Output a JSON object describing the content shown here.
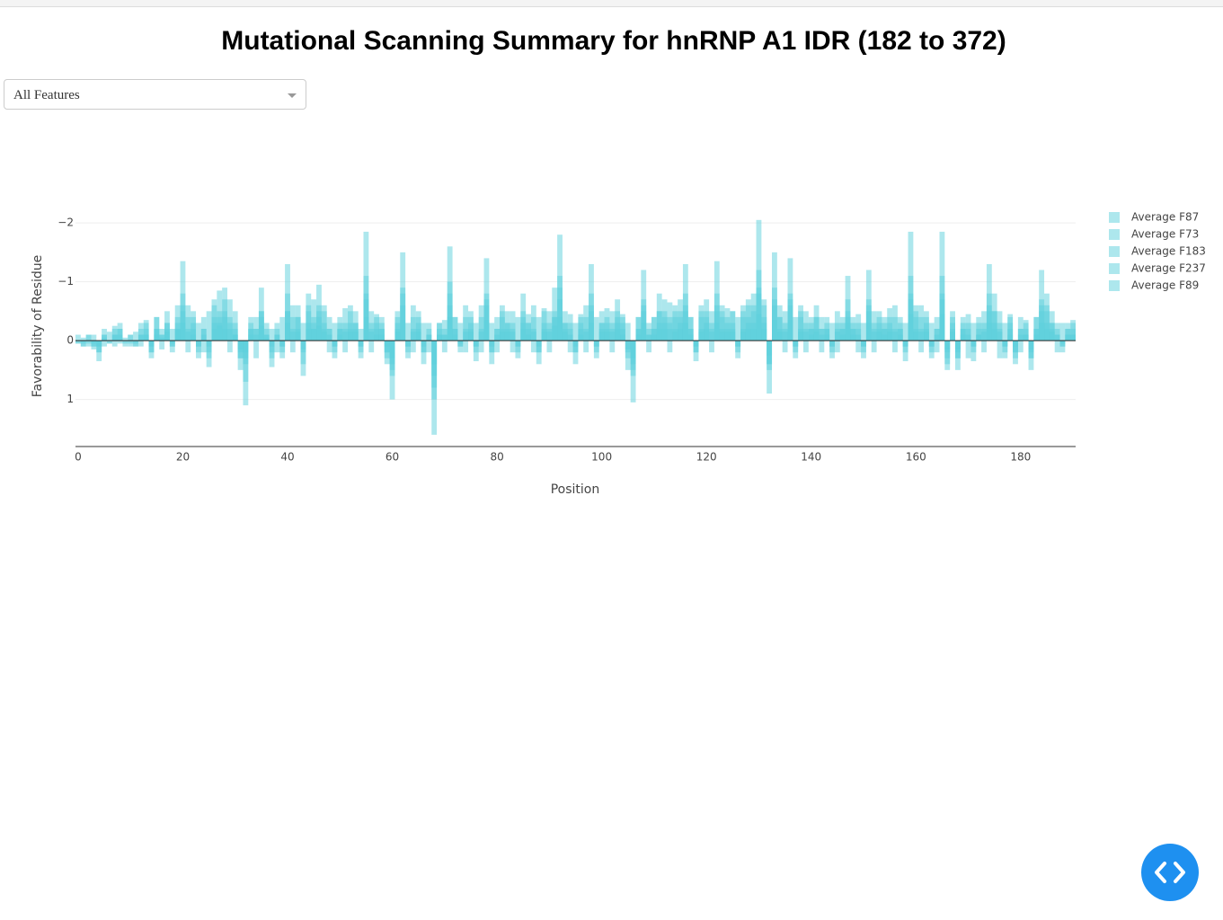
{
  "dropdown": {
    "label": "All Features"
  },
  "chart_data": {
    "type": "bar",
    "barmode": "overlay",
    "opacity": 0.5,
    "title": "Mutational Scanning Summary for hnRNP A1 IDR (182 to 372)",
    "x_label": "Position",
    "y_label": "Favorability of Residue",
    "x": [
      0,
      1,
      2,
      3,
      4,
      5,
      6,
      7,
      8,
      9,
      10,
      11,
      12,
      13,
      14,
      15,
      16,
      17,
      18,
      19,
      20,
      21,
      22,
      23,
      24,
      25,
      26,
      27,
      28,
      29,
      30,
      31,
      32,
      33,
      34,
      35,
      36,
      37,
      38,
      39,
      40,
      41,
      42,
      43,
      44,
      45,
      46,
      47,
      48,
      49,
      50,
      51,
      52,
      53,
      54,
      55,
      56,
      57,
      58,
      59,
      60,
      61,
      62,
      63,
      64,
      65,
      66,
      67,
      68,
      69,
      70,
      71,
      72,
      73,
      74,
      75,
      76,
      77,
      78,
      79,
      80,
      81,
      82,
      83,
      84,
      85,
      86,
      87,
      88,
      89,
      90,
      91,
      92,
      93,
      94,
      95,
      96,
      97,
      98,
      99,
      100,
      101,
      102,
      103,
      104,
      105,
      106,
      107,
      108,
      109,
      110,
      111,
      112,
      113,
      114,
      115,
      116,
      117,
      118,
      119,
      120,
      121,
      122,
      123,
      124,
      125,
      126,
      127,
      128,
      129,
      130,
      131,
      132,
      133,
      134,
      135,
      136,
      137,
      138,
      139,
      140,
      141,
      142,
      143,
      144,
      145,
      146,
      147,
      148,
      149,
      150,
      151,
      152,
      153,
      154,
      155,
      156,
      157,
      158,
      159,
      160,
      161,
      162,
      163,
      164,
      165,
      166,
      167,
      168,
      169,
      170,
      171,
      172,
      173,
      174,
      175,
      176,
      177,
      178,
      179,
      180,
      181,
      182,
      183,
      184,
      185,
      186,
      187,
      188,
      189,
      190
    ],
    "xlim": [
      -0.5,
      190.5
    ],
    "xticks": [
      0,
      20,
      40,
      60,
      80,
      100,
      120,
      140,
      160,
      180
    ],
    "ylim": [
      1.8,
      -2.2
    ],
    "yticks": [
      {
        "value": -2,
        "label": "−2"
      },
      {
        "value": -1,
        "label": "−1"
      },
      0,
      1
    ],
    "grid": true,
    "zeroline": true,
    "legend": "right",
    "series": [
      {
        "name": "Average F87",
        "color": "#5ccfdc",
        "values": [
          0.05,
          0.1,
          -0.1,
          0.15,
          0.35,
          -0.2,
          0.05,
          -0.25,
          -0.3,
          0.05,
          -0.1,
          0.1,
          -0.3,
          -0.35,
          0.3,
          -0.4,
          -0.2,
          -0.5,
          0.2,
          -0.6,
          -1.35,
          -0.6,
          -0.5,
          0.3,
          -0.4,
          0.45,
          -0.7,
          -0.85,
          -0.9,
          -0.7,
          -0.3,
          0.5,
          1.1,
          -0.4,
          -0.4,
          -0.9,
          -0.2,
          0.45,
          -0.3,
          0.3,
          -1.3,
          -0.6,
          -0.6,
          0.6,
          -0.8,
          -0.7,
          -0.95,
          -0.5,
          -0.4,
          0.3,
          -0.4,
          -0.55,
          -0.5,
          -0.5,
          0.3,
          -1.85,
          -0.5,
          -0.45,
          -0.4,
          0.4,
          1.0,
          -0.5,
          -1.5,
          0.3,
          -0.6,
          -0.5,
          0.4,
          -0.3,
          1.6,
          -0.3,
          -0.35,
          -1.6,
          -0.4,
          0.2,
          -0.6,
          -0.5,
          0.35,
          -0.6,
          -1.4,
          0.4,
          -0.4,
          -0.6,
          -0.5,
          -0.5,
          0.3,
          -0.8,
          -0.45,
          -0.6,
          0.4,
          -0.55,
          -0.5,
          -0.9,
          -1.8,
          -0.5,
          -0.45,
          0.4,
          -0.45,
          -0.6,
          -1.3,
          0.3,
          -0.5,
          -0.55,
          -0.5,
          -0.7,
          -0.45,
          0.5,
          1.05,
          -0.4,
          -1.2,
          -0.3,
          -0.4,
          -0.8,
          -0.7,
          -0.65,
          -0.6,
          -0.7,
          -1.3,
          -0.4,
          0.35,
          -0.6,
          -0.7,
          -0.5,
          -1.35,
          -0.6,
          -0.55,
          -0.5,
          0.3,
          -0.6,
          -0.7,
          -0.8,
          -2.05,
          -0.7,
          0.9,
          -1.5,
          -0.6,
          -0.5,
          -1.4,
          0.3,
          -0.6,
          -0.5,
          -0.4,
          -0.6,
          -0.4,
          -0.4,
          0.3,
          -0.5,
          -0.4,
          -1.1,
          -0.4,
          -0.45,
          0.3,
          -1.2,
          -0.5,
          -0.5,
          -0.4,
          -0.55,
          -0.6,
          -0.4,
          0.35,
          -1.85,
          -0.6,
          -0.6,
          -0.5,
          0.3,
          -0.4,
          -1.85,
          0.5,
          -0.5,
          0.5,
          -0.4,
          -0.45,
          0.35,
          -0.3,
          -0.5,
          -1.3,
          -0.8,
          -0.5,
          0.3,
          -0.45,
          0.4,
          -0.4,
          -0.35,
          0.5,
          -0.4,
          -1.2,
          -0.8,
          -0.5,
          -0.3,
          0.2,
          -0.3,
          -0.35
        ]
      },
      {
        "name": "Average F73",
        "color": "#5ccfdc",
        "values": [
          0.0,
          0.1,
          -0.1,
          0.1,
          0.2,
          -0.1,
          0.0,
          -0.2,
          -0.2,
          0.0,
          -0.1,
          0.1,
          -0.2,
          -0.2,
          0.2,
          -0.2,
          -0.1,
          -0.3,
          0.1,
          -0.4,
          -0.8,
          -0.4,
          -0.3,
          0.2,
          -0.2,
          0.3,
          -0.4,
          -0.5,
          -0.5,
          -0.4,
          -0.2,
          0.3,
          0.7,
          -0.2,
          -0.2,
          -0.5,
          -0.1,
          0.3,
          -0.2,
          0.2,
          -0.8,
          -0.4,
          -0.4,
          0.4,
          -0.5,
          -0.4,
          -0.6,
          -0.3,
          -0.2,
          0.2,
          -0.2,
          -0.3,
          -0.3,
          -0.3,
          0.2,
          -1.1,
          -0.3,
          -0.3,
          -0.2,
          0.2,
          0.6,
          -0.3,
          -0.9,
          0.2,
          -0.4,
          -0.3,
          0.2,
          -0.2,
          1.0,
          -0.2,
          -0.2,
          -1.0,
          -0.2,
          0.1,
          -0.4,
          -0.3,
          0.2,
          -0.4,
          -0.8,
          0.2,
          -0.2,
          -0.4,
          -0.3,
          -0.3,
          0.2,
          -0.5,
          -0.3,
          -0.4,
          0.2,
          -0.3,
          -0.3,
          -0.5,
          -1.1,
          -0.3,
          -0.3,
          0.2,
          -0.3,
          -0.4,
          -0.8,
          0.2,
          -0.3,
          -0.3,
          -0.3,
          -0.4,
          -0.3,
          0.3,
          0.6,
          -0.2,
          -0.7,
          -0.2,
          -0.2,
          -0.5,
          -0.4,
          -0.4,
          -0.4,
          -0.4,
          -0.8,
          -0.2,
          0.2,
          -0.4,
          -0.4,
          -0.3,
          -0.8,
          -0.4,
          -0.3,
          -0.3,
          0.2,
          -0.4,
          -0.4,
          -0.5,
          -1.2,
          -0.4,
          0.5,
          -0.9,
          -0.4,
          -0.3,
          -0.8,
          0.2,
          -0.4,
          -0.3,
          -0.2,
          -0.4,
          -0.2,
          -0.2,
          0.2,
          -0.3,
          -0.2,
          -0.7,
          -0.2,
          -0.3,
          0.2,
          -0.7,
          -0.3,
          -0.3,
          -0.2,
          -0.3,
          -0.4,
          -0.2,
          0.2,
          -1.1,
          -0.4,
          -0.4,
          -0.3,
          0.2,
          -0.2,
          -1.1,
          0.3,
          -0.3,
          0.3,
          -0.2,
          -0.3,
          0.2,
          -0.2,
          -0.3,
          -0.8,
          -0.5,
          -0.3,
          0.2,
          -0.3,
          0.2,
          -0.2,
          -0.2,
          0.3,
          -0.2,
          -0.7,
          -0.5,
          -0.3,
          -0.2,
          0.1,
          -0.2,
          -0.2
        ]
      },
      {
        "name": "Average F183",
        "color": "#5ccfdc",
        "values": [
          0.0,
          0.0,
          0.0,
          0.1,
          0.1,
          -0.1,
          0.0,
          -0.1,
          -0.1,
          0.0,
          0.0,
          0.0,
          -0.1,
          -0.1,
          0.1,
          -0.2,
          -0.1,
          -0.2,
          0.1,
          -0.2,
          -0.5,
          -0.2,
          -0.2,
          0.1,
          -0.2,
          0.2,
          -0.3,
          -0.3,
          -0.4,
          -0.3,
          -0.1,
          0.2,
          0.4,
          -0.2,
          -0.2,
          -0.4,
          -0.1,
          0.2,
          -0.1,
          0.1,
          -0.5,
          -0.2,
          -0.2,
          0.2,
          -0.3,
          -0.3,
          -0.4,
          -0.2,
          -0.2,
          0.1,
          -0.2,
          -0.2,
          -0.2,
          -0.2,
          0.1,
          -0.7,
          -0.2,
          -0.2,
          -0.2,
          0.2,
          0.4,
          -0.2,
          -0.6,
          0.1,
          -0.2,
          -0.2,
          0.2,
          -0.1,
          0.6,
          -0.1,
          -0.1,
          -0.6,
          -0.2,
          0.1,
          -0.2,
          -0.2,
          0.1,
          -0.2,
          -0.6,
          0.2,
          -0.2,
          -0.2,
          -0.2,
          -0.2,
          0.1,
          -0.3,
          -0.2,
          -0.2,
          0.2,
          -0.2,
          -0.2,
          -0.4,
          -0.7,
          -0.2,
          -0.2,
          0.2,
          -0.2,
          -0.2,
          -0.5,
          0.1,
          -0.2,
          -0.2,
          -0.2,
          -0.3,
          -0.2,
          0.2,
          0.4,
          -0.2,
          -0.5,
          -0.1,
          -0.2,
          -0.3,
          -0.3,
          -0.3,
          -0.2,
          -0.3,
          -0.5,
          -0.2,
          0.1,
          -0.2,
          -0.3,
          -0.2,
          -0.5,
          -0.2,
          -0.2,
          -0.2,
          0.1,
          -0.2,
          -0.3,
          -0.3,
          -0.8,
          -0.3,
          0.4,
          -0.6,
          -0.2,
          -0.2,
          -0.6,
          0.1,
          -0.2,
          -0.2,
          -0.2,
          -0.2,
          -0.2,
          -0.2,
          0.1,
          -0.2,
          -0.2,
          -0.4,
          -0.2,
          -0.2,
          0.1,
          -0.5,
          -0.2,
          -0.2,
          -0.2,
          -0.2,
          -0.2,
          -0.2,
          0.1,
          -0.7,
          -0.2,
          -0.2,
          -0.2,
          0.1,
          -0.2,
          -0.7,
          0.2,
          -0.2,
          0.2,
          -0.2,
          -0.2,
          0.1,
          -0.1,
          -0.2,
          -0.5,
          -0.3,
          -0.2,
          0.1,
          -0.2,
          0.2,
          -0.2,
          -0.1,
          0.2,
          -0.2,
          -0.5,
          -0.3,
          -0.2,
          -0.1,
          0.1,
          -0.1,
          -0.1
        ]
      },
      {
        "name": "Average F237",
        "color": "#5ccfdc",
        "values": [
          -0.1,
          0.05,
          0.1,
          -0.1,
          0.2,
          0.1,
          -0.15,
          0.1,
          -0.2,
          0.1,
          0.1,
          -0.15,
          0.1,
          -0.3,
          0.2,
          -0.4,
          0.15,
          -0.3,
          -0.2,
          -0.3,
          -0.6,
          0.2,
          -0.4,
          -0.3,
          0.2,
          -0.5,
          -0.6,
          -0.4,
          -0.7,
          0.2,
          -0.5,
          0.3,
          0.2,
          -0.3,
          0.3,
          -0.5,
          -0.3,
          -0.2,
          0.2,
          -0.4,
          -0.5,
          0.2,
          -0.4,
          -0.3,
          -0.6,
          -0.2,
          -0.5,
          -0.6,
          0.2,
          -0.3,
          -0.3,
          0.2,
          -0.6,
          -0.3,
          -0.2,
          -0.8,
          0.2,
          -0.4,
          -0.3,
          0.3,
          0.5,
          -0.4,
          -0.8,
          -0.3,
          0.2,
          -0.4,
          -0.3,
          0.2,
          0.8,
          -0.3,
          0.2,
          -0.8,
          -0.4,
          -0.3,
          0.2,
          -0.4,
          -0.3,
          0.2,
          -0.7,
          -0.3,
          0.2,
          -0.5,
          -0.3,
          0.2,
          -0.4,
          -0.4,
          -0.3,
          0.2,
          -0.4,
          -0.5,
          0.2,
          -0.4,
          -0.9,
          -0.3,
          0.2,
          -0.3,
          -0.4,
          0.2,
          -0.6,
          -0.4,
          -0.3,
          -0.4,
          0.2,
          -0.5,
          -0.4,
          -0.3,
          0.5,
          -0.4,
          -0.6,
          0.2,
          -0.4,
          -0.5,
          -0.5,
          0.2,
          -0.5,
          -0.5,
          -0.6,
          -0.4,
          0.2,
          -0.5,
          -0.5,
          0.2,
          -0.6,
          -0.5,
          -0.4,
          -0.5,
          -0.4,
          -0.5,
          -0.6,
          -0.6,
          -0.9,
          -0.6,
          0.4,
          -0.7,
          -0.4,
          0.2,
          -0.7,
          -0.4,
          -0.5,
          0.2,
          -0.3,
          -0.4,
          0.2,
          -0.3,
          -0.3,
          0.2,
          -0.3,
          -0.5,
          -0.3,
          0.2,
          -0.3,
          -0.6,
          0.2,
          -0.4,
          -0.3,
          -0.4,
          0.2,
          -0.3,
          -0.3,
          -0.8,
          -0.5,
          0.2,
          -0.4,
          -0.3,
          0.2,
          -0.8,
          0.4,
          -0.4,
          0.3,
          -0.3,
          0.3,
          -0.3,
          -0.4,
          0.2,
          -0.6,
          -0.5,
          0.3,
          -0.3,
          -0.4,
          0.3,
          0.2,
          -0.3,
          0.3,
          -0.4,
          -0.6,
          -0.6,
          -0.3,
          0.2,
          -0.3,
          -0.2,
          -0.3
        ]
      },
      {
        "name": "Average F89",
        "color": "#5ccfdc",
        "values": [
          0.05,
          -0.05,
          0.05,
          0.05,
          0.1,
          -0.05,
          0.05,
          -0.1,
          0.05,
          -0.05,
          0.05,
          0.05,
          -0.1,
          -0.1,
          0.1,
          -0.1,
          -0.05,
          -0.15,
          0.05,
          -0.2,
          -0.3,
          -0.15,
          -0.1,
          0.1,
          -0.1,
          0.1,
          -0.2,
          -0.25,
          -0.2,
          -0.2,
          -0.1,
          0.15,
          0.3,
          -0.1,
          -0.1,
          -0.25,
          -0.05,
          0.1,
          -0.1,
          0.1,
          -0.3,
          -0.15,
          -0.15,
          0.15,
          -0.2,
          -0.2,
          -0.25,
          -0.15,
          -0.1,
          0.1,
          -0.1,
          -0.15,
          -0.15,
          -0.15,
          0.1,
          -0.4,
          -0.15,
          -0.1,
          -0.1,
          0.1,
          0.3,
          -0.15,
          -0.35,
          0.1,
          -0.15,
          -0.15,
          0.1,
          -0.1,
          0.4,
          -0.1,
          -0.1,
          -0.4,
          -0.1,
          0.05,
          -0.15,
          -0.15,
          0.1,
          -0.15,
          -0.35,
          0.1,
          -0.1,
          -0.15,
          -0.15,
          -0.15,
          0.1,
          -0.2,
          -0.1,
          -0.15,
          0.1,
          -0.15,
          -0.15,
          -0.25,
          -0.4,
          -0.15,
          -0.1,
          0.1,
          -0.1,
          -0.15,
          -0.3,
          0.1,
          -0.15,
          -0.15,
          -0.15,
          -0.2,
          -0.1,
          0.15,
          0.3,
          -0.1,
          -0.3,
          -0.1,
          -0.1,
          -0.2,
          -0.2,
          -0.2,
          -0.15,
          -0.2,
          -0.3,
          -0.1,
          0.1,
          -0.15,
          -0.2,
          -0.15,
          -0.3,
          -0.15,
          -0.15,
          -0.15,
          0.1,
          -0.15,
          -0.2,
          -0.2,
          -0.45,
          -0.2,
          0.25,
          -0.35,
          -0.15,
          -0.15,
          -0.35,
          0.1,
          -0.15,
          -0.15,
          -0.1,
          -0.15,
          -0.1,
          -0.1,
          0.1,
          -0.15,
          -0.1,
          -0.3,
          -0.1,
          -0.1,
          0.1,
          -0.3,
          -0.15,
          -0.15,
          -0.1,
          -0.15,
          -0.15,
          -0.1,
          0.1,
          -0.45,
          -0.15,
          -0.15,
          -0.15,
          0.1,
          -0.1,
          -0.45,
          0.15,
          -0.15,
          0.15,
          -0.1,
          -0.1,
          0.1,
          -0.1,
          -0.15,
          -0.3,
          -0.2,
          -0.15,
          0.1,
          -0.1,
          0.1,
          -0.1,
          -0.1,
          0.15,
          -0.1,
          -0.3,
          -0.2,
          -0.15,
          -0.1,
          0.05,
          -0.1,
          -0.1
        ]
      }
    ]
  }
}
